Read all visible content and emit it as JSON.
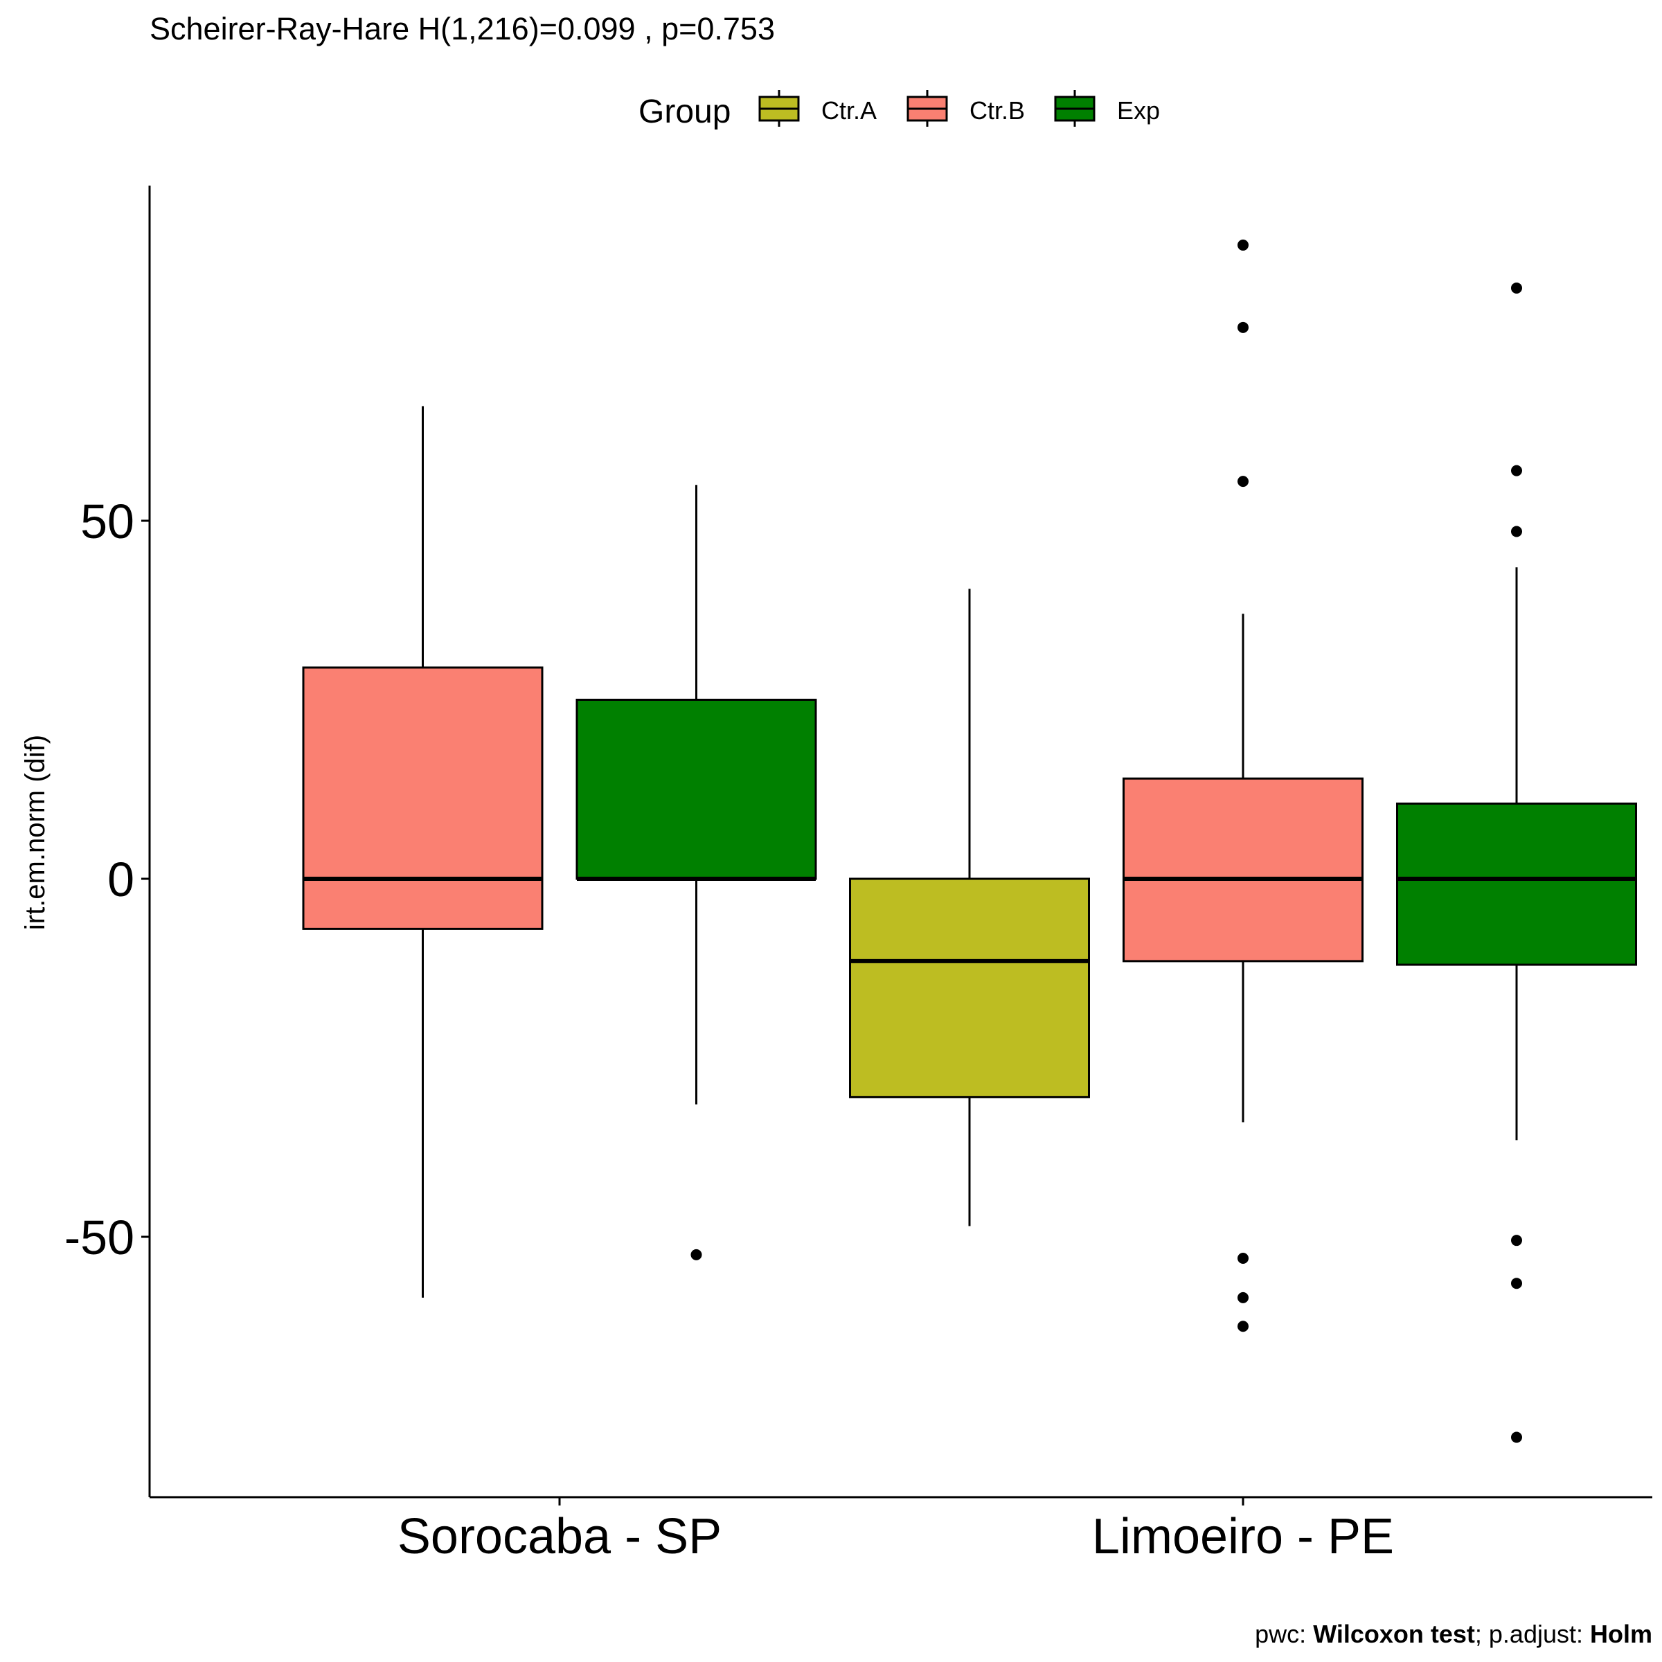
{
  "chart_data": {
    "type": "boxplot",
    "title": "Scheirer-Ray-Hare H(1,216)=0.099 , p=0.753",
    "ylabel": "irt.em.norm (dif)",
    "xlabel": "",
    "ylim": [
      -82,
      96
    ],
    "yticks": [
      -50,
      0,
      50
    ],
    "categories": [
      "Sorocaba - SP",
      "Limoeiro - PE"
    ],
    "legend": {
      "title": "Group",
      "position": "top",
      "entries": [
        {
          "name": "Ctr.A",
          "color": "#BDBD22"
        },
        {
          "name": "Ctr.B",
          "color": "#FA8072"
        },
        {
          "name": "Exp",
          "color": "#008000"
        }
      ]
    },
    "boxes": [
      {
        "category": "Sorocaba - SP",
        "group": "Ctr.B",
        "whisker_low": -58.5,
        "q1": -7,
        "median": 0,
        "q3": 29.5,
        "whisker_high": 66,
        "outliers": []
      },
      {
        "category": "Sorocaba - SP",
        "group": "Exp",
        "whisker_low": -31.5,
        "q1": 0,
        "median": 0,
        "q3": 25,
        "whisker_high": 55,
        "outliers": [
          -52.5
        ]
      },
      {
        "category": "Limoeiro - PE",
        "group": "Ctr.A",
        "whisker_low": -48.5,
        "q1": -30.5,
        "median": -11.5,
        "q3": 0,
        "whisker_high": 40.5,
        "outliers": []
      },
      {
        "category": "Limoeiro - PE",
        "group": "Ctr.B",
        "whisker_low": -34,
        "q1": -11.5,
        "median": 0,
        "q3": 14,
        "whisker_high": 37,
        "outliers": [
          88.5,
          77,
          55.5,
          -53,
          -58.5,
          -62.5
        ]
      },
      {
        "category": "Limoeiro - PE",
        "group": "Exp",
        "whisker_low": -36.5,
        "q1": -12,
        "median": 0,
        "q3": 10.5,
        "whisker_high": 43.5,
        "outliers": [
          82.5,
          57,
          48.5,
          -50.5,
          -56.5,
          -78
        ]
      }
    ],
    "grid": false,
    "caption": {
      "prefix": "pwc: ",
      "test": "Wilcoxon test",
      "mid": "; p.adjust: ",
      "method": "Holm"
    }
  }
}
